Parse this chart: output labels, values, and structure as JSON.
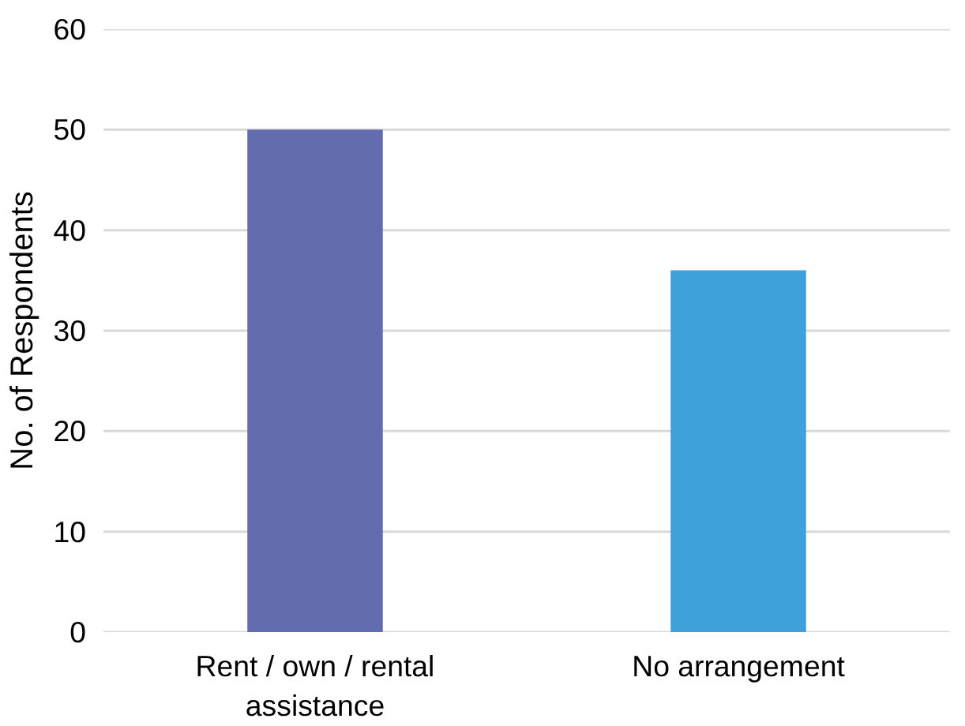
{
  "chart_data": {
    "type": "bar",
    "ylabel": "No. of Respondents",
    "categories": [
      "Rent / own / rental assistance",
      "No arrangement"
    ],
    "values": [
      50,
      36
    ],
    "colors": [
      "#646cb0",
      "#3ea1dc"
    ],
    "ylim": [
      0,
      60
    ],
    "yticks": [
      0,
      10,
      20,
      30,
      40,
      50,
      60
    ],
    "grid": "y"
  }
}
